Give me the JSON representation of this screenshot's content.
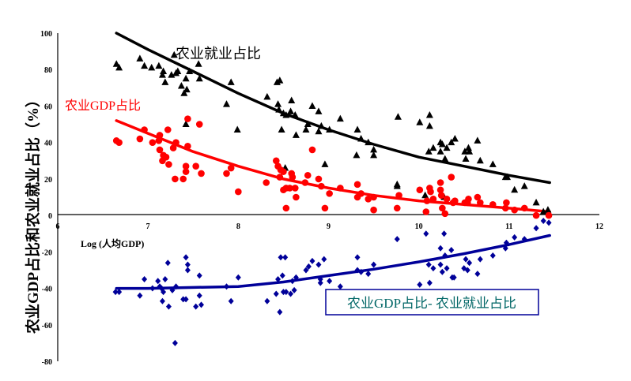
{
  "chart_data": {
    "type": "scatter",
    "title": "",
    "xlabel": "Log (人均GDP)",
    "ylabel": "农业GDP占比和农业就业占比（%）",
    "xlim": [
      6,
      12
    ],
    "ylim": [
      -80,
      100
    ],
    "x_ticks": [
      "6",
      "7",
      "8",
      "9",
      "10",
      "11",
      "12"
    ],
    "y_ticks": [
      "100",
      "80",
      "60",
      "40",
      "20",
      "0",
      "-20",
      "-40",
      "-60",
      "-80"
    ],
    "grid": false,
    "series": [
      {
        "name": "农业就业占比",
        "marker": "triangle",
        "color": "#000000",
        "points": [
          [
            6.65,
            83
          ],
          [
            6.68,
            81
          ],
          [
            6.91,
            86
          ],
          [
            6.96,
            82
          ],
          [
            7.04,
            81
          ],
          [
            7.12,
            82
          ],
          [
            7.17,
            79
          ],
          [
            7.16,
            77
          ],
          [
            7.19,
            73
          ],
          [
            7.29,
            88
          ],
          [
            7.26,
            77
          ],
          [
            7.31,
            78
          ],
          [
            7.33,
            79
          ],
          [
            7.37,
            71
          ],
          [
            7.4,
            67
          ],
          [
            7.43,
            69
          ],
          [
            7.42,
            75
          ],
          [
            7.46,
            79
          ],
          [
            7.56,
            83
          ],
          [
            7.57,
            75
          ],
          [
            7.42,
            50
          ],
          [
            7.99,
            47
          ],
          [
            7.92,
            73
          ],
          [
            7.87,
            61
          ],
          [
            8.43,
            73
          ],
          [
            8.46,
            74
          ],
          [
            8.32,
            65
          ],
          [
            8.44,
            61
          ],
          [
            8.59,
            63
          ],
          [
            8.45,
            58
          ],
          [
            8.5,
            56
          ],
          [
            8.53,
            55
          ],
          [
            8.58,
            57
          ],
          [
            8.63,
            55
          ],
          [
            8.82,
            60
          ],
          [
            8.89,
            57
          ],
          [
            8.48,
            47
          ],
          [
            8.64,
            44
          ],
          [
            8.77,
            50
          ],
          [
            8.75,
            47
          ],
          [
            8.92,
            49
          ],
          [
            8.89,
            46
          ],
          [
            9.01,
            47
          ],
          [
            9.13,
            53
          ],
          [
            9.32,
            47
          ],
          [
            9.36,
            42
          ],
          [
            9.44,
            40
          ],
          [
            9.5,
            36
          ],
          [
            9.5,
            33
          ],
          [
            9.31,
            33
          ],
          [
            8.96,
            28
          ],
          [
            8.52,
            26
          ],
          [
            9.77,
            54
          ],
          [
            9.76,
            17
          ],
          [
            10.01,
            51
          ],
          [
            10.12,
            55
          ],
          [
            10.12,
            49
          ],
          [
            10.24,
            40
          ],
          [
            10.26,
            39
          ],
          [
            10.11,
            35
          ],
          [
            10.16,
            37
          ],
          [
            10.4,
            42
          ],
          [
            10.36,
            40
          ],
          [
            10.31,
            37
          ],
          [
            10.24,
            35
          ],
          [
            10.29,
            31
          ],
          [
            10.51,
            35
          ],
          [
            10.55,
            37
          ],
          [
            10.56,
            35
          ],
          [
            10.52,
            31
          ],
          [
            10.65,
            41
          ],
          [
            10.68,
            30
          ],
          [
            10.82,
            28
          ],
          [
            10.96,
            21
          ],
          [
            10.98,
            21
          ],
          [
            11.06,
            14
          ],
          [
            11.17,
            16
          ],
          [
            11.3,
            7
          ],
          [
            11.43,
            3
          ],
          [
            11.38,
            2
          ],
          [
            9.76,
            16
          ],
          [
            10.07,
            11
          ],
          [
            10.28,
            10
          ]
        ],
        "fit": [
          [
            6.65,
            100
          ],
          [
            7,
            91
          ],
          [
            7.5,
            79
          ],
          [
            8,
            67
          ],
          [
            8.5,
            56
          ],
          [
            9,
            47
          ],
          [
            9.5,
            39
          ],
          [
            10,
            32
          ],
          [
            10.5,
            27
          ],
          [
            11,
            22
          ],
          [
            11.45,
            18
          ]
        ]
      },
      {
        "name": "农业GDP占比",
        "marker": "circle",
        "color": "#ff0000",
        "points": [
          [
            6.65,
            41
          ],
          [
            6.68,
            40
          ],
          [
            6.91,
            42
          ],
          [
            6.96,
            47
          ],
          [
            7.05,
            40
          ],
          [
            7.13,
            44
          ],
          [
            7.12,
            41
          ],
          [
            7.13,
            36
          ],
          [
            7.17,
            33
          ],
          [
            7.2,
            32
          ],
          [
            7.16,
            30
          ],
          [
            7.23,
            28
          ],
          [
            7.22,
            47
          ],
          [
            7.31,
            40
          ],
          [
            7.28,
            37
          ],
          [
            7.44,
            38
          ],
          [
            7.44,
            53
          ],
          [
            7.57,
            50
          ],
          [
            7.3,
            20
          ],
          [
            7.39,
            20
          ],
          [
            7.42,
            24
          ],
          [
            7.42,
            27
          ],
          [
            7.53,
            27
          ],
          [
            7.59,
            23
          ],
          [
            7.87,
            23
          ],
          [
            7.92,
            26
          ],
          [
            8.0,
            13
          ],
          [
            8.31,
            18
          ],
          [
            8.42,
            30
          ],
          [
            8.44,
            27
          ],
          [
            8.47,
            25
          ],
          [
            8.46,
            21
          ],
          [
            8.5,
            24
          ],
          [
            8.59,
            23
          ],
          [
            8.6,
            21
          ],
          [
            8.5,
            14
          ],
          [
            8.53,
            15
          ],
          [
            8.57,
            15
          ],
          [
            8.63,
            15
          ],
          [
            8.64,
            10
          ],
          [
            8.53,
            4
          ],
          [
            8.77,
            22
          ],
          [
            8.82,
            36
          ],
          [
            8.74,
            18
          ],
          [
            8.89,
            20
          ],
          [
            8.92,
            16
          ],
          [
            8.96,
            4
          ],
          [
            9.01,
            12
          ],
          [
            9.13,
            15
          ],
          [
            9.32,
            17
          ],
          [
            9.32,
            10
          ],
          [
            9.36,
            12
          ],
          [
            9.44,
            9
          ],
          [
            9.5,
            10
          ],
          [
            9.5,
            3
          ],
          [
            9.76,
            4
          ],
          [
            9.78,
            11
          ],
          [
            10.01,
            14
          ],
          [
            10.12,
            15
          ],
          [
            10.13,
            13
          ],
          [
            10.24,
            18
          ],
          [
            10.36,
            21
          ],
          [
            10.24,
            14
          ],
          [
            10.25,
            11
          ],
          [
            10.16,
            9
          ],
          [
            10.09,
            8
          ],
          [
            10.08,
            2
          ],
          [
            10.26,
            4
          ],
          [
            10.29,
            1
          ],
          [
            10.31,
            9
          ],
          [
            10.4,
            8
          ],
          [
            10.38,
            7
          ],
          [
            10.51,
            7
          ],
          [
            10.55,
            9
          ],
          [
            10.54,
            7
          ],
          [
            10.65,
            10
          ],
          [
            10.68,
            7
          ],
          [
            10.82,
            6
          ],
          [
            10.97,
            7
          ],
          [
            10.96,
            4
          ],
          [
            11.06,
            3
          ],
          [
            11.17,
            4
          ],
          [
            11.3,
            0
          ],
          [
            11.44,
            0
          ]
        ],
        "fit": [
          [
            6.65,
            52
          ],
          [
            7,
            45
          ],
          [
            7.5,
            35
          ],
          [
            8,
            27
          ],
          [
            8.5,
            20
          ],
          [
            9,
            15
          ],
          [
            9.5,
            11
          ],
          [
            10,
            8
          ],
          [
            10.5,
            6
          ],
          [
            11,
            4
          ],
          [
            11.45,
            2
          ]
        ]
      },
      {
        "name": "农业GDP占比- 农业就业占比",
        "marker": "diamond",
        "color": "#000099",
        "points": [
          [
            6.64,
            -42
          ],
          [
            6.68,
            -42
          ],
          [
            6.96,
            -35
          ],
          [
            6.91,
            -44
          ],
          [
            7.05,
            -40
          ],
          [
            7.11,
            -36
          ],
          [
            7.13,
            -39
          ],
          [
            7.15,
            -40
          ],
          [
            7.17,
            -42
          ],
          [
            7.16,
            -47
          ],
          [
            7.22,
            -26
          ],
          [
            7.19,
            -35
          ],
          [
            7.23,
            -50
          ],
          [
            7.27,
            -41
          ],
          [
            7.31,
            -39
          ],
          [
            7.3,
            -70
          ],
          [
            7.42,
            -23
          ],
          [
            7.44,
            -27
          ],
          [
            7.44,
            -30
          ],
          [
            7.39,
            -46
          ],
          [
            7.42,
            -46
          ],
          [
            7.57,
            -33
          ],
          [
            7.57,
            -44
          ],
          [
            7.59,
            -49
          ],
          [
            7.53,
            -50
          ],
          [
            7.87,
            -39
          ],
          [
            7.92,
            -47
          ],
          [
            8.0,
            -34
          ],
          [
            8.32,
            -47
          ],
          [
            8.46,
            -53
          ],
          [
            8.42,
            -43
          ],
          [
            8.5,
            -42
          ],
          [
            8.53,
            -42
          ],
          [
            8.58,
            -43
          ],
          [
            8.62,
            -41
          ],
          [
            8.6,
            -36
          ],
          [
            8.64,
            -34
          ],
          [
            8.44,
            -35
          ],
          [
            8.49,
            -33
          ],
          [
            8.47,
            -23
          ],
          [
            8.52,
            -23
          ],
          [
            8.75,
            -30
          ],
          [
            8.78,
            -28
          ],
          [
            8.82,
            -25
          ],
          [
            8.89,
            -27
          ],
          [
            8.95,
            -24
          ],
          [
            8.91,
            -35
          ],
          [
            8.91,
            -37
          ],
          [
            9.01,
            -36
          ],
          [
            9.13,
            -39
          ],
          [
            9.32,
            -23
          ],
          [
            9.32,
            -30
          ],
          [
            9.36,
            -31
          ],
          [
            9.44,
            -32
          ],
          [
            9.5,
            -27
          ],
          [
            9.76,
            -13
          ],
          [
            10.08,
            -10
          ],
          [
            10.28,
            -10
          ],
          [
            10.24,
            -18
          ],
          [
            10.36,
            -19
          ],
          [
            10.29,
            -22
          ],
          [
            10.31,
            -29
          ],
          [
            10.26,
            -31
          ],
          [
            10.24,
            -27
          ],
          [
            10.16,
            -29
          ],
          [
            10.11,
            -27
          ],
          [
            10.01,
            -38
          ],
          [
            10.12,
            -37
          ],
          [
            10.12,
            -42
          ],
          [
            9.78,
            -44
          ],
          [
            10.37,
            -34
          ],
          [
            10.39,
            -34
          ],
          [
            10.52,
            -24
          ],
          [
            10.56,
            -26
          ],
          [
            10.5,
            -29
          ],
          [
            10.54,
            -30
          ],
          [
            10.65,
            -32
          ],
          [
            10.68,
            -24
          ],
          [
            10.82,
            -22
          ],
          [
            10.97,
            -15
          ],
          [
            10.96,
            -18
          ],
          [
            11.06,
            -12
          ],
          [
            11.17,
            -13
          ],
          [
            11.3,
            -7
          ],
          [
            11.38,
            -3
          ],
          [
            11.44,
            -4
          ]
        ],
        "fit": [
          [
            6.65,
            -40
          ],
          [
            7,
            -40
          ],
          [
            7.5,
            -39.5
          ],
          [
            8,
            -39
          ],
          [
            8.5,
            -36.5
          ],
          [
            9,
            -33
          ],
          [
            9.5,
            -29.5
          ],
          [
            10,
            -25.5
          ],
          [
            10.5,
            -21
          ],
          [
            11,
            -16
          ],
          [
            11.45,
            -11
          ]
        ]
      }
    ],
    "annotations": {
      "employment_label": "农业就业占比",
      "gdp_label": "农业GDP占比",
      "diff_label": "农业GDP占比- 农业就业占比",
      "diff_label_color": "#006666"
    }
  }
}
